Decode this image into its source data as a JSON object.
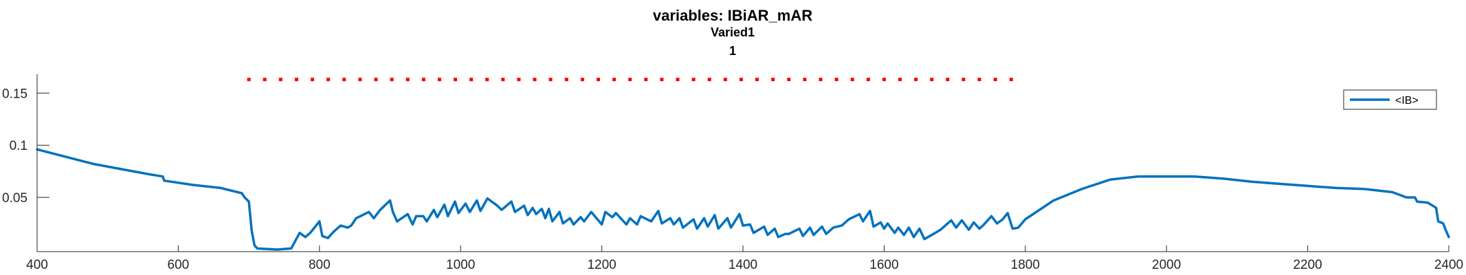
{
  "chart_data": {
    "type": "line",
    "title": "variables: IBiAR_mAR",
    "subtitle_lines": [
      "Varied1",
      "1"
    ],
    "xlabel": "",
    "ylabel": "",
    "xlim": [
      400,
      2400
    ],
    "ylim": [
      -0.002,
      0.168
    ],
    "x_ticks": [
      400,
      600,
      800,
      1000,
      1200,
      1400,
      1600,
      1800,
      2000,
      2200,
      2400
    ],
    "x_tick_labels": [
      "400",
      "600",
      "800",
      "1000",
      "1200",
      "1400",
      "1600",
      "1800",
      "2000",
      "2200",
      "2400"
    ],
    "y_ticks": [
      0.05,
      0.1,
      0.15
    ],
    "y_tick_labels": [
      "0.05",
      "0.1",
      "0.15"
    ],
    "grid": false,
    "legend_position": "top-right",
    "colors": {
      "series": "#0072BD",
      "markers": "#FF0000",
      "axis": "#262626"
    },
    "series": [
      {
        "name": "<IB>",
        "x": [
          400,
          440,
          480,
          520,
          560,
          578,
          580,
          600,
          620,
          660,
          690,
          694,
          700,
          704,
          708,
          712,
          740,
          760,
          772,
          780,
          787,
          800,
          804,
          812,
          820,
          830,
          840,
          845,
          852,
          870,
          877,
          886,
          900,
          904,
          910,
          925,
          932,
          937,
          947,
          952,
          962,
          967,
          977,
          982,
          992,
          997,
          1007,
          1013,
          1023,
          1028,
          1038,
          1052,
          1058,
          1072,
          1077,
          1090,
          1095,
          1102,
          1107,
          1115,
          1120,
          1125,
          1130,
          1140,
          1145,
          1155,
          1160,
          1170,
          1175,
          1185,
          1200,
          1205,
          1215,
          1220,
          1235,
          1240,
          1250,
          1255,
          1270,
          1280,
          1285,
          1297,
          1302,
          1310,
          1315,
          1330,
          1335,
          1345,
          1350,
          1360,
          1365,
          1378,
          1383,
          1395,
          1400,
          1410,
          1415,
          1430,
          1435,
          1445,
          1450,
          1460,
          1465,
          1480,
          1485,
          1495,
          1500,
          1512,
          1518,
          1528,
          1540,
          1550,
          1565,
          1570,
          1580,
          1585,
          1595,
          1600,
          1605,
          1615,
          1620,
          1628,
          1635,
          1642,
          1650,
          1657,
          1670,
          1680,
          1695,
          1702,
          1710,
          1720,
          1727,
          1735,
          1740,
          1752,
          1760,
          1768,
          1775,
          1782,
          1790,
          1800,
          1840,
          1880,
          1920,
          1960,
          2000,
          2040,
          2080,
          2120,
          2160,
          2200,
          2240,
          2280,
          2320,
          2340,
          2352,
          2355,
          2370,
          2375,
          2382,
          2385,
          2392,
          2396,
          2400
        ],
        "values": [
          0.096,
          0.089,
          0.082,
          0.077,
          0.072,
          0.07,
          0.066,
          0.064,
          0.062,
          0.059,
          0.054,
          0.05,
          0.046,
          0.018,
          0.004,
          0.001,
          0.0,
          0.001,
          0.016,
          0.012,
          0.016,
          0.027,
          0.013,
          0.011,
          0.017,
          0.023,
          0.021,
          0.023,
          0.03,
          0.036,
          0.03,
          0.038,
          0.047,
          0.036,
          0.027,
          0.034,
          0.024,
          0.032,
          0.032,
          0.027,
          0.038,
          0.031,
          0.043,
          0.032,
          0.046,
          0.035,
          0.044,
          0.036,
          0.047,
          0.037,
          0.049,
          0.042,
          0.038,
          0.046,
          0.036,
          0.042,
          0.033,
          0.04,
          0.034,
          0.039,
          0.03,
          0.039,
          0.027,
          0.036,
          0.025,
          0.03,
          0.024,
          0.031,
          0.027,
          0.036,
          0.024,
          0.036,
          0.031,
          0.035,
          0.024,
          0.03,
          0.024,
          0.032,
          0.027,
          0.037,
          0.025,
          0.03,
          0.024,
          0.03,
          0.021,
          0.029,
          0.02,
          0.03,
          0.022,
          0.033,
          0.02,
          0.03,
          0.021,
          0.034,
          0.023,
          0.024,
          0.016,
          0.022,
          0.014,
          0.02,
          0.012,
          0.015,
          0.015,
          0.02,
          0.013,
          0.021,
          0.014,
          0.022,
          0.015,
          0.021,
          0.023,
          0.029,
          0.034,
          0.027,
          0.037,
          0.022,
          0.026,
          0.02,
          0.025,
          0.016,
          0.021,
          0.014,
          0.021,
          0.012,
          0.02,
          0.01,
          0.015,
          0.019,
          0.028,
          0.021,
          0.028,
          0.019,
          0.026,
          0.02,
          0.023,
          0.032,
          0.025,
          0.029,
          0.035,
          0.02,
          0.021,
          0.029,
          0.047,
          0.058,
          0.067,
          0.07,
          0.07,
          0.07,
          0.068,
          0.065,
          0.063,
          0.061,
          0.059,
          0.058,
          0.055,
          0.05,
          0.05,
          0.046,
          0.045,
          0.043,
          0.04,
          0.027,
          0.025,
          0.018,
          0.012
        ]
      }
    ],
    "markers": {
      "y": 0.163,
      "x": [
        700,
        722.5,
        745,
        767.5,
        790,
        812.5,
        835,
        857.5,
        880,
        902.5,
        925,
        947.5,
        970,
        992.5,
        1015,
        1037.5,
        1060,
        1082.5,
        1105,
        1127.5,
        1150,
        1172.5,
        1195,
        1217.5,
        1240,
        1262.5,
        1285,
        1307.5,
        1330,
        1352.5,
        1375,
        1397.5,
        1420,
        1442.5,
        1465,
        1487.5,
        1510,
        1532.5,
        1555,
        1577.5,
        1600,
        1622.5,
        1645,
        1667.5,
        1690,
        1712.5,
        1735,
        1757.5,
        1780
      ]
    }
  }
}
